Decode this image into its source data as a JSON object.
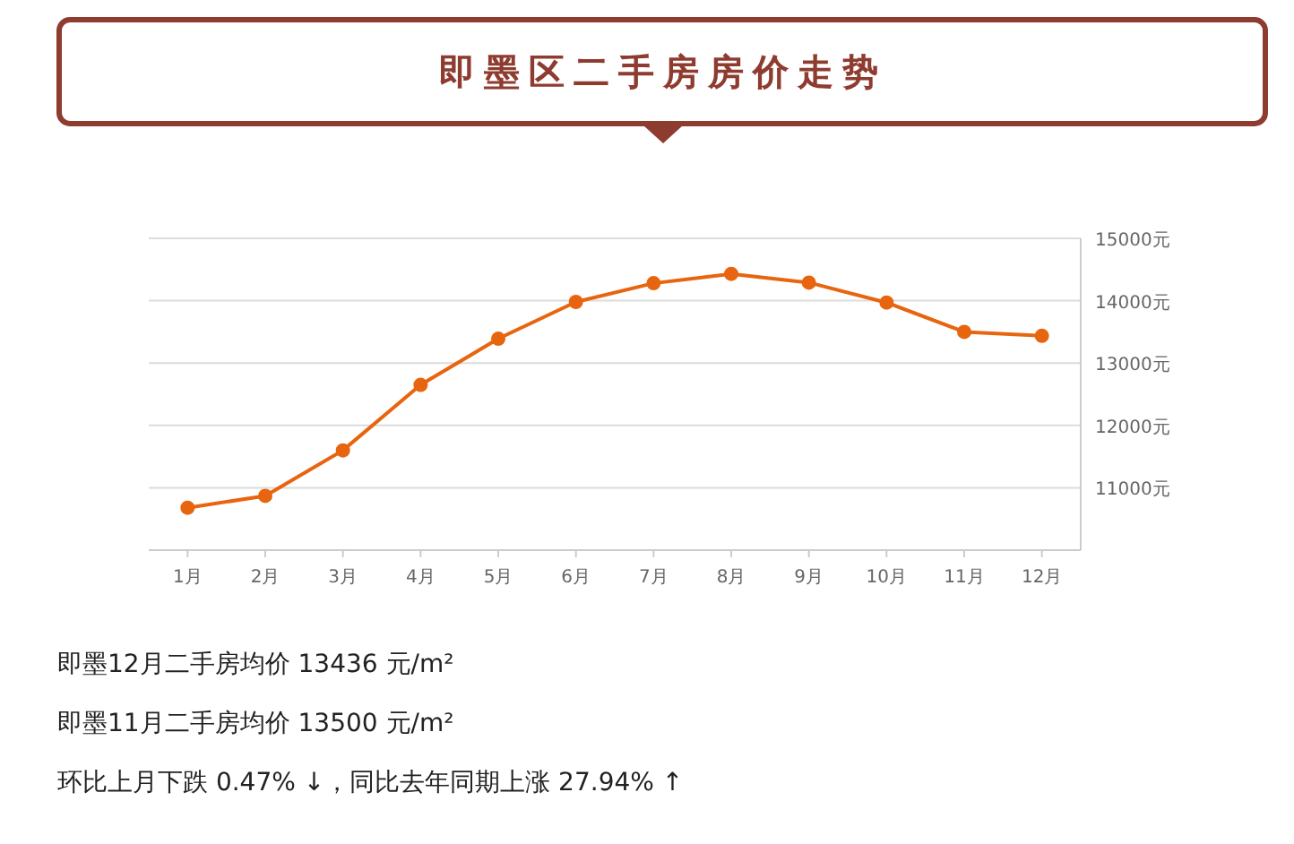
{
  "chart_data": {
    "type": "line",
    "title": "即墨区二手房房价走势",
    "categories": [
      "1月",
      "2月",
      "3月",
      "4月",
      "5月",
      "6月",
      "7月",
      "8月",
      "9月",
      "10月",
      "11月",
      "12月"
    ],
    "series": [
      {
        "color": "#e8650f",
        "values": [
          10680,
          10870,
          11600,
          12650,
          13390,
          13980,
          14280,
          14430,
          14290,
          13970,
          13500,
          13436
        ]
      }
    ],
    "ylim": [
      10000,
      15000
    ],
    "yticks": [
      {
        "value": 11000,
        "label": "11000元"
      },
      {
        "value": 12000,
        "label": "12000元"
      },
      {
        "value": 13000,
        "label": "13000元"
      },
      {
        "value": 14000,
        "label": "14000元"
      },
      {
        "value": 15000,
        "label": "15000元"
      }
    ],
    "grid": "y",
    "marker": "circle",
    "annotations": [
      "即墨12月二手房均价 13436 元/m²",
      "即墨11月二手房均价 13500 元/m²",
      "环比上月下跌 0.47% ↓，同比去年同期上涨 27.94% ↑"
    ]
  }
}
